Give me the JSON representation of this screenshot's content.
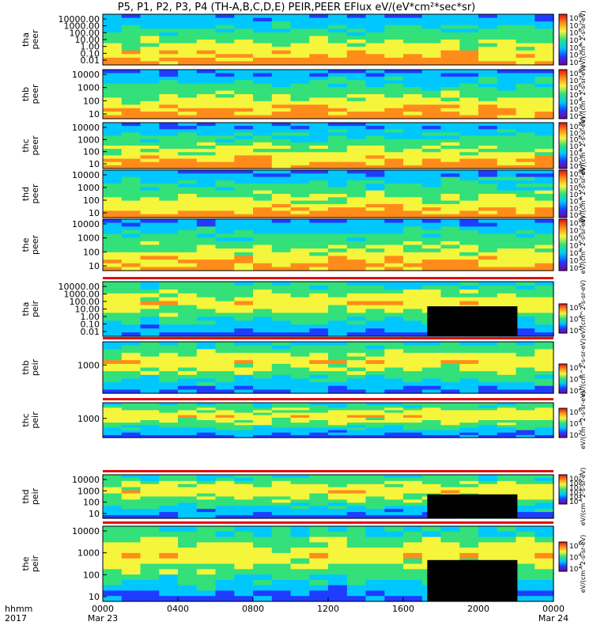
{
  "title": "P5, P1, P2, P3, P4 (TH-A,B,C,D,E) PEIR,PEER EFlux eV/(eV*cm²*sec*sr)",
  "time_axis": {
    "row_label_1": "hhmm",
    "row_label_2": "2017",
    "ticks": [
      {
        "hhmm": "0000",
        "date": "Mar 23",
        "frac": 0.0
      },
      {
        "hhmm": "0400",
        "date": "",
        "frac": 0.1667
      },
      {
        "hhmm": "0800",
        "date": "",
        "frac": 0.3333
      },
      {
        "hhmm": "1200",
        "date": "",
        "frac": 0.5
      },
      {
        "hhmm": "1600",
        "date": "",
        "frac": 0.6667
      },
      {
        "hhmm": "2000",
        "date": "",
        "frac": 0.8333
      },
      {
        "hhmm": "0000",
        "date": "Mar 24",
        "frac": 1.0
      }
    ]
  },
  "chart_data": {
    "type": "heatmap",
    "title": "P5, P1, P2, P3, P4 (TH-A,B,C,D,E) PEIR,PEER EFlux eV/(eV*cm²*sec*sr)",
    "x": {
      "start": "2017-03-23 00:00",
      "end": "2017-03-24 00:00",
      "tick_labels": [
        "0000",
        "0400",
        "0800",
        "1200",
        "1600",
        "2000",
        "0000"
      ]
    },
    "colormap": [
      "#7a0099",
      "#1f3cff",
      "#00c8ff",
      "#33e07a",
      "#f5f53c",
      "#ff8c1a",
      "#e01010"
    ],
    "panels": [
      {
        "probe": "tha",
        "species": "peer",
        "ylabel": "tha peer",
        "yticks": [
          "10000.00",
          "1000.00",
          "100.00",
          "10.00",
          "1.00",
          "0.10",
          "0.01"
        ],
        "yscale": "log",
        "cbar_ticks": [
          "10^8",
          "10^7",
          "10^6",
          "10^5",
          "10^4",
          "10^3",
          "10^2"
        ],
        "cbar_label": "eV/(cm^2-s-sr-eV)"
      },
      {
        "probe": "thb",
        "species": "peer",
        "ylabel": "thb peer",
        "yticks": [
          "10000",
          "1000",
          "100",
          "10"
        ],
        "yscale": "log",
        "cbar_ticks": [
          "10^8",
          "10^7",
          "10^6",
          "10^5",
          "10^4",
          "10^3",
          "10^2"
        ],
        "cbar_label": "eV/(cm^2-s-sr-eV)"
      },
      {
        "probe": "thc",
        "species": "peer",
        "ylabel": "thc peer",
        "yticks": [
          "10000",
          "1000",
          "100",
          "10"
        ],
        "yscale": "log",
        "cbar_ticks": [
          "10^8",
          "10^7",
          "10^6",
          "10^5",
          "10^4",
          "10^3",
          "10^2"
        ],
        "cbar_label": "eV/(cm^2-s-sr-eV)"
      },
      {
        "probe": "thd",
        "species": "peer",
        "ylabel": "thd peer",
        "yticks": [
          "10000",
          "1000",
          "100",
          "10"
        ],
        "yscale": "log",
        "cbar_ticks": [
          "10^8",
          "10^7",
          "10^6",
          "10^5",
          "10^4",
          "10^3",
          "10^2"
        ],
        "cbar_label": "eV/(cm^2-s-sr-eV)"
      },
      {
        "probe": "the",
        "species": "peer",
        "ylabel": "the peer",
        "yticks": [
          "10000",
          "1000",
          "100",
          "10"
        ],
        "yscale": "log",
        "cbar_ticks": [
          "10^8",
          "10^7",
          "10^6",
          "10^5",
          "10^4",
          "10^3",
          "10^2"
        ],
        "cbar_label": "eV/(cm^2-s-sr-eV)"
      },
      {
        "probe": "tha",
        "species": "peir",
        "ylabel": "tha peir",
        "yticks": [
          "10000.00",
          "1000.00",
          "100.00",
          "10.00",
          "1.00",
          "0.10",
          "0.01"
        ],
        "yscale": "log",
        "cbar_ticks": [
          "10^6",
          "10^4",
          "10^2"
        ],
        "cbar_label": "eV/(cm^2-s-sr-eV)"
      },
      {
        "probe": "thb",
        "species": "peir",
        "ylabel": "thb peir",
        "yticks": [
          "1000"
        ],
        "yscale": "log",
        "cbar_ticks": [
          "10^6",
          "10^4",
          "10^2"
        ],
        "cbar_label": "eV/(cm^2-s-sr-eV)"
      },
      {
        "probe": "thc",
        "species": "peir",
        "ylabel": "thc peir",
        "yticks": [
          "1000"
        ],
        "yscale": "log",
        "cbar_ticks": [
          "10^6",
          "10^4",
          "10^2"
        ],
        "cbar_label": "eV/(cm^2-s-sr-eV)"
      },
      {
        "probe": "thd",
        "species": "peir",
        "ylabel": "thd peir",
        "yticks": [
          "10000",
          "1000",
          "100",
          "10"
        ],
        "yscale": "log",
        "cbar_ticks": [
          "10^7",
          "10^6",
          "10^5",
          "10^4",
          "10^3",
          "10^2"
        ],
        "cbar_label": "eV/(cm^2-s-sr-eV)"
      },
      {
        "probe": "the",
        "species": "peir",
        "ylabel": "the peir",
        "yticks": [
          "10000",
          "1000",
          "100",
          "10"
        ],
        "yscale": "log",
        "cbar_ticks": [
          "10^6",
          "10^4",
          "10^2"
        ],
        "cbar_label": "eV/(cm^2-s-sr-eV)"
      }
    ]
  }
}
